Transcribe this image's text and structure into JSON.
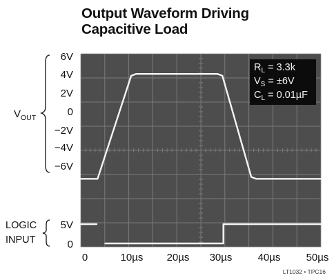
{
  "chart_data": {
    "type": "line",
    "title": "Output Waveform Driving Capacitive Load",
    "title_lines": [
      "Output Waveform Driving",
      "Capacitive Load"
    ],
    "x_unit": "µs",
    "x_ticks": [
      "0",
      "10µs",
      "20µs",
      "30µs",
      "40µs",
      "50µs"
    ],
    "xlim": [
      0,
      50
    ],
    "vout_label": "V",
    "vout_label_sub": "OUT",
    "vout_ticks": [
      "6V",
      "4V",
      "2V",
      "0",
      "−2V",
      "−4V",
      "−6V"
    ],
    "vout_ylim": [
      -6,
      6
    ],
    "logic_label_lines": [
      "LOGIC",
      "INPUT"
    ],
    "logic_ticks": [
      "5V",
      "0"
    ],
    "series": [
      {
        "x": [
          0,
          3.5,
          10.5,
          11.5,
          28.5,
          29.5,
          35.5,
          36.5,
          50
        ],
        "y": [
          -7.2,
          -7.2,
          3.8,
          4.0,
          4.0,
          3.8,
          -7.0,
          -7.2,
          -7.2
        ]
      },
      {
        "x": [
          0,
          3.3,
          3.3,
          5.1,
          5.1,
          29.7,
          29.7,
          50
        ],
        "y": [
          5,
          5,
          null,
          null,
          0,
          0,
          5,
          5
        ]
      }
    ],
    "legend": [
      {
        "main": "R",
        "sub": "L",
        "rest": " = 3.3k"
      },
      {
        "main": "V",
        "sub": "S",
        "rest": " = ±6V"
      },
      {
        "main": "C",
        "sub": "L",
        "rest": " = 0.01µF"
      }
    ],
    "legend_position": "top-right",
    "grid": true,
    "grid_divisions": {
      "x": 10,
      "y": 8
    },
    "colors": {
      "screen": "#4d4d4d",
      "grid": "#8a8a8a",
      "trace": "#f4f4f4",
      "legend_bg": "#0c0c0c"
    }
  },
  "footer": "LT1032 • TPC16"
}
